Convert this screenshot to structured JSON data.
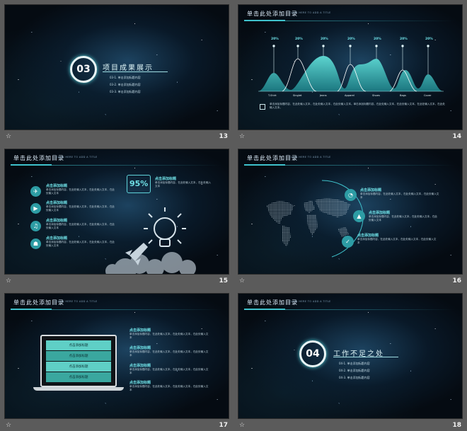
{
  "header": {
    "title": "单击此处添加目录",
    "subtitle": "CLICK HERE TO ADD A TITLE"
  },
  "slides": {
    "s13": {
      "number": "13",
      "circle": "03",
      "title": "项目成果展示",
      "items": [
        "03-1. 单击添加标题内容",
        "03-2. 单击添加标题内容",
        "03-3. 单击添加标题内容"
      ]
    },
    "s14": {
      "number": "14",
      "percents": [
        "20%",
        "20%",
        "20%",
        "20%",
        "20%",
        "20%",
        "20%"
      ],
      "labels": [
        "T-Shirt",
        "Singlet",
        "Jeans",
        "Apparel",
        "Shoes",
        "Bags",
        "Cover"
      ],
      "body": "单击添加标题内容，在此处输入文本，在此处输入文本，在此处输入文本。单击添加标题内容，在此处输入文本，在此处输入文本，在此处输入文本，在此处输入文本。"
    },
    "s15": {
      "number": "15",
      "percent": "95%",
      "callout_title": "点击添加标题",
      "callout_text": "单击添加标题内容，在此处输入文本，在此处输入文本",
      "items": [
        {
          "title": "点击添加标题",
          "text": "单击添加标题内容，在此处输入文本，在此处输入文本，在此处输入文本"
        },
        {
          "title": "点击添加标题",
          "text": "单击添加标题内容，在此处输入文本，在此处输入文本，在此处输入文本"
        },
        {
          "title": "点击添加标题",
          "text": "单击添加标题内容，在此处输入文本，在此处输入文本，在此处输入文本"
        },
        {
          "title": "点击添加标题",
          "text": "单击添加标题内容，在此处输入文本，在此处输入文本，在此处输入文本"
        }
      ]
    },
    "s16": {
      "number": "16",
      "items": [
        {
          "title": "点击添加标题",
          "text": "单击添加标题内容，在此处输入文本，在此处输入文本，在此处输入文本"
        },
        {
          "title": "点击添加标题",
          "text": "单击添加标题内容，在此处输入文本，在此处输入文本，在此处输入文本"
        },
        {
          "title": "点击添加标题",
          "text": "单击添加标题内容，在此处输入文本，在此处输入文本，在此处输入文本"
        }
      ]
    },
    "s17": {
      "number": "17",
      "screen_rows": [
        "点击添加标题",
        "点击添加标题",
        "点击添加标题",
        "点击添加标题"
      ],
      "items": [
        {
          "title": "点击添加标题",
          "text": "单击添加标题内容，在此处输入文本，在此处输入文本，在此处输入文本"
        },
        {
          "title": "点击添加标题",
          "text": "单击添加标题内容，在此处输入文本，在此处输入文本，在此处输入文本"
        },
        {
          "title": "点击添加标题",
          "text": "单击添加标题内容，在此处输入文本，在此处输入文本，在此处输入文本"
        },
        {
          "title": "点击添加标题",
          "text": "单击添加标题内容，在此处输入文本，在此处输入文本，在此处输入文本"
        }
      ]
    },
    "s18": {
      "number": "18",
      "circle": "04",
      "title": "工作不足之处",
      "items": [
        "04-1. 单击添加标题内容",
        "04-2. 单击添加标题内容",
        "04-3. 单击添加标题内容"
      ]
    }
  },
  "colors": {
    "accent": "#3fc2cc",
    "background": "#050b12",
    "frame": "#5b5b5b"
  },
  "icons": {
    "star": "star-icon"
  }
}
